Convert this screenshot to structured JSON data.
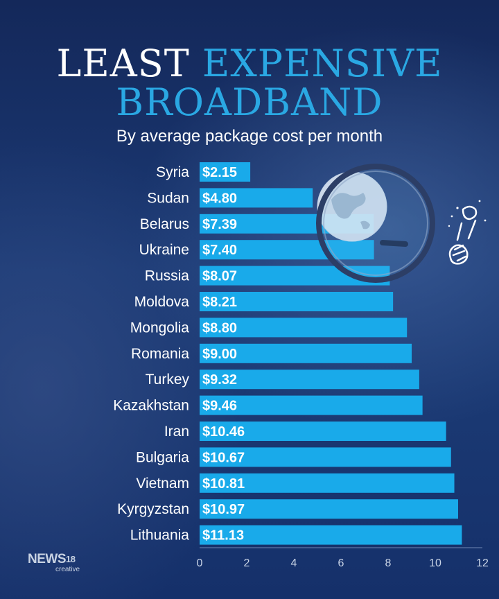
{
  "title_line_1_a": "LEAST",
  "title_line_1_b": "EXPENSIVE",
  "title_line_2": "BROADBAND",
  "subtitle": "By average package cost per month",
  "logo": {
    "brand": "NEWS",
    "number": "18",
    "tagline": "creative"
  },
  "colors": {
    "bar": "#19aaea",
    "title_accent": "#2aa8e3",
    "background": "#17305f"
  },
  "illustration": "globe-under-magnifying-glass",
  "chart_data": {
    "type": "bar",
    "orientation": "horizontal",
    "categories": [
      "Syria",
      "Sudan",
      "Belarus",
      "Ukraine",
      "Russia",
      "Moldova",
      "Mongolia",
      "Romania",
      "Turkey",
      "Kazakhstan",
      "Iran",
      "Bulgaria",
      "Vietnam",
      "Kyrgyzstan",
      "Lithuania"
    ],
    "values": [
      2.15,
      4.8,
      7.39,
      7.4,
      8.07,
      8.21,
      8.8,
      9.0,
      9.32,
      9.46,
      10.46,
      10.67,
      10.81,
      10.97,
      11.13
    ],
    "data_labels": [
      "$2.15",
      "$4.80",
      "$7.39",
      "$7.40",
      "$8.07",
      "$8.21",
      "$8.80",
      "$9.00",
      "$9.32",
      "$9.46",
      "$10.46",
      "$10.67",
      "$10.81",
      "$10.97",
      "$11.13"
    ],
    "x_ticks": [
      0,
      2,
      4,
      6,
      8,
      10,
      12
    ],
    "xlim": [
      0,
      12
    ],
    "grid": false,
    "legend": "none"
  }
}
